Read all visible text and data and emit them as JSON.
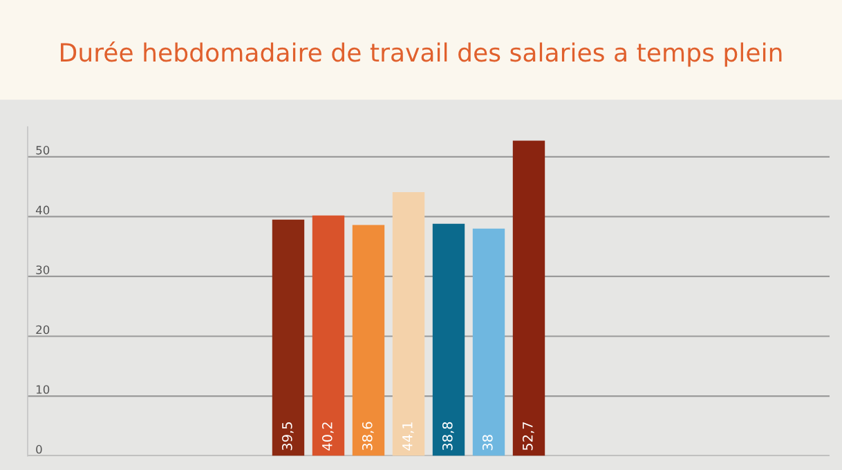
{
  "chart_data": {
    "type": "bar",
    "title": "Durée hebdomadaire de travail des salaries a temps plein",
    "categories": [
      null,
      null,
      null,
      null,
      null,
      null,
      null,
      null,
      null,
      null,
      null,
      null,
      null,
      null,
      null,
      null,
      null,
      null,
      null,
      null
    ],
    "values": [
      null,
      null,
      null,
      null,
      null,
      null,
      39.5,
      40.2,
      38.6,
      44.1,
      38.8,
      38,
      52.7,
      null,
      null,
      null,
      null,
      null,
      null,
      null
    ],
    "colors": [
      null,
      null,
      null,
      null,
      null,
      null,
      "#8c2a12",
      "#d9532b",
      "#f08c38",
      "#f4d2aa",
      "#0b6a8d",
      "#6fb7e0",
      "#8a2410",
      null,
      null,
      null,
      null,
      null,
      null,
      null
    ],
    "value_labels": [
      null,
      null,
      null,
      null,
      null,
      null,
      "39,5",
      "40,2",
      "38,6",
      "44,1",
      "38,8",
      "38",
      "52,7",
      null,
      null,
      null,
      null,
      null,
      null,
      null
    ],
    "ylim": [
      0,
      55
    ],
    "yticks": [
      0,
      10,
      20,
      30,
      40,
      50
    ],
    "grid": "y",
    "legend": false
  }
}
